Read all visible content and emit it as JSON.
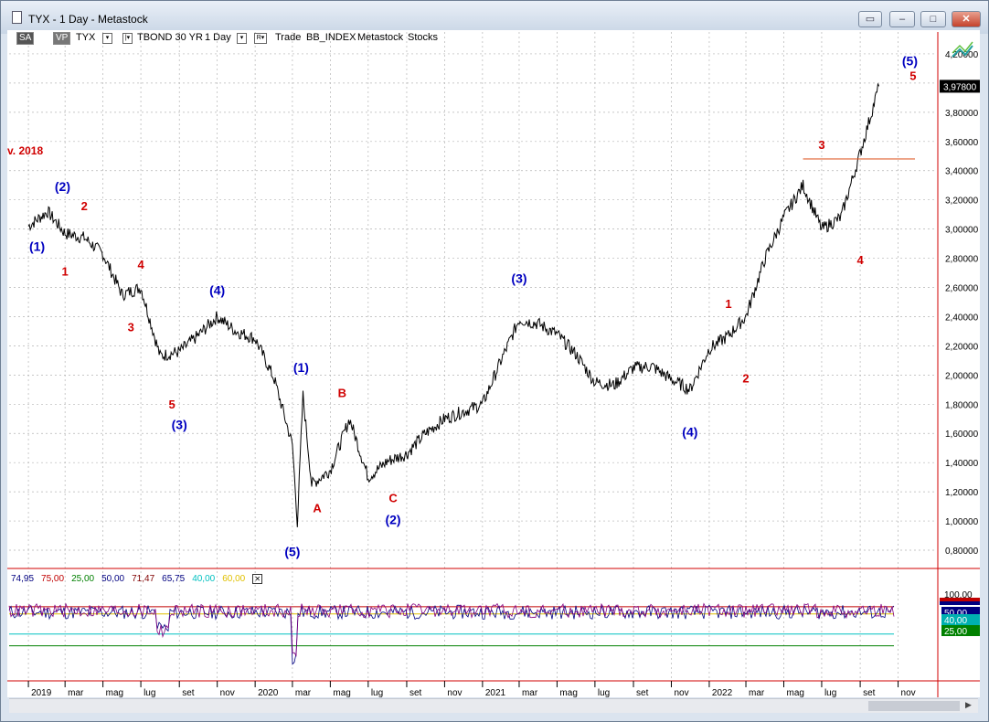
{
  "window": {
    "title": "TYX - 1 Day - Metastock"
  },
  "toolbar": {
    "sa": "SA",
    "vp": "VP",
    "symbol": "TYX",
    "security_name": "TBOND 30 YR",
    "period": "1 Day",
    "trade": "Trade",
    "index": "BB_INDEX",
    "provider": "Metastock",
    "category": "Stocks"
  },
  "icons": [
    "window-icon",
    "restore-icon",
    "minimize-icon",
    "maximize-icon",
    "close-icon",
    "dropdown-icon",
    "chart-toggle-icon",
    "close-box-icon"
  ],
  "price_axis": {
    "labels": [
      "4,20000",
      "4,00000",
      "3,80000",
      "3,60000",
      "3,40000",
      "3,20000",
      "3,00000",
      "2,80000",
      "2,60000",
      "2,40000",
      "2,20000",
      "2,00000",
      "1,80000",
      "1,60000",
      "1,40000",
      "1,20000",
      "1,00000",
      "0,80000"
    ],
    "values": [
      4.2,
      4.0,
      3.8,
      3.6,
      3.4,
      3.2,
      3.0,
      2.8,
      2.6,
      2.4,
      2.2,
      2.0,
      1.8,
      1.6,
      1.4,
      1.2,
      1.0,
      0.8
    ],
    "current_price_label": "3,97800",
    "current_price": 3.978
  },
  "x_axis": {
    "labels": [
      "2019",
      "mar",
      "mag",
      "lug",
      "set",
      "nov",
      "2020",
      "mar",
      "mag",
      "lug",
      "set",
      "nov",
      "2021",
      "mar",
      "mag",
      "lug",
      "set",
      "nov",
      "2022",
      "mar",
      "mag",
      "lug",
      "set",
      "nov"
    ]
  },
  "annotation_text": "v. 2018",
  "indicator": {
    "values_row": [
      "74,95",
      "75,00",
      "25,00",
      "50,00",
      "71,47",
      "65,75",
      "40,00",
      "60,00"
    ],
    "values_colors": [
      "#000080",
      "#c00000",
      "#008000",
      "#000080",
      "#800000",
      "#000080",
      "#00c0c0",
      "#e0c000"
    ],
    "axis_labels": [
      "100,00",
      "50,00",
      "40,00",
      "25,00"
    ],
    "axis_values": [
      100,
      50,
      40,
      25
    ],
    "axis_colors": [
      "#c00000",
      "#000080",
      "#00b0b0",
      "#008000"
    ],
    "series": [
      {
        "color": "#000080",
        "role": "line A"
      },
      {
        "color": "#800080",
        "role": "line B"
      }
    ],
    "ref_lines": [
      {
        "value": 75,
        "color": "#c00000"
      },
      {
        "value": 65.75,
        "color": "#e0c000"
      },
      {
        "value": 40,
        "color": "#00c0c0"
      },
      {
        "value": 25,
        "color": "#008000"
      }
    ]
  },
  "chart_data": {
    "type": "line",
    "title": "",
    "xlabel": "",
    "ylabel": "",
    "ylim": [
      0.7,
      4.35
    ],
    "x": [
      "2019-01-01",
      "2019-02-01",
      "2019-03-01",
      "2019-04-01",
      "2019-05-01",
      "2019-06-01",
      "2019-07-01",
      "2019-08-01",
      "2019-09-01",
      "2019-10-01",
      "2019-11-01",
      "2019-12-01",
      "2020-01-01",
      "2020-02-01",
      "2020-03-01",
      "2020-03-09",
      "2020-03-18",
      "2020-04-01",
      "2020-05-01",
      "2020-06-01",
      "2020-07-01",
      "2020-08-01",
      "2020-09-01",
      "2020-10-01",
      "2020-11-01",
      "2020-12-01",
      "2021-01-01",
      "2021-02-01",
      "2021-03-01",
      "2021-04-01",
      "2021-05-01",
      "2021-06-01",
      "2021-07-01",
      "2021-08-01",
      "2021-09-01",
      "2021-10-01",
      "2021-11-01",
      "2021-12-01",
      "2022-01-01",
      "2022-02-01",
      "2022-03-01",
      "2022-04-01",
      "2022-05-01",
      "2022-06-01",
      "2022-07-01",
      "2022-08-01",
      "2022-09-01",
      "2022-10-01"
    ],
    "series": [
      {
        "color": "#000000",
        "values": [
          3.02,
          3.12,
          2.97,
          2.94,
          2.83,
          2.55,
          2.6,
          2.13,
          2.16,
          2.27,
          2.4,
          2.3,
          2.25,
          1.97,
          1.52,
          0.99,
          1.86,
          1.25,
          1.35,
          1.7,
          1.3,
          1.41,
          1.46,
          1.6,
          1.7,
          1.75,
          1.8,
          2.11,
          2.38,
          2.35,
          2.28,
          2.14,
          1.95,
          1.93,
          2.05,
          2.06,
          1.97,
          1.9,
          2.18,
          2.27,
          2.4,
          2.8,
          3.08,
          3.3,
          3.0,
          3.08,
          3.52,
          3.978
        ]
      }
    ],
    "wave_labels": [
      {
        "text": "(1)",
        "x": "2019-01-15",
        "y": 2.85,
        "degree": "primary"
      },
      {
        "text": "1",
        "x": "2019-03-01",
        "y": 2.68,
        "degree": "minor"
      },
      {
        "text": "(2)",
        "x": "2019-02-25",
        "y": 3.26,
        "degree": "primary"
      },
      {
        "text": "2",
        "x": "2019-04-01",
        "y": 3.13,
        "degree": "minor"
      },
      {
        "text": "3",
        "x": "2019-06-15",
        "y": 2.3,
        "degree": "minor"
      },
      {
        "text": "4",
        "x": "2019-07-01",
        "y": 2.73,
        "degree": "minor"
      },
      {
        "text": "5",
        "x": "2019-08-20",
        "y": 1.77,
        "degree": "minor"
      },
      {
        "text": "(3)",
        "x": "2019-09-01",
        "y": 1.63,
        "degree": "primary"
      },
      {
        "text": "(4)",
        "x": "2019-11-01",
        "y": 2.55,
        "degree": "primary"
      },
      {
        "text": "(1)",
        "x": "2020-03-15",
        "y": 2.02,
        "degree": "primary"
      },
      {
        "text": "(5)",
        "x": "2020-03-01",
        "y": 0.76,
        "degree": "primary"
      },
      {
        "text": "A",
        "x": "2020-04-10",
        "y": 1.06,
        "degree": "minor"
      },
      {
        "text": "B",
        "x": "2020-05-20",
        "y": 1.85,
        "degree": "minor"
      },
      {
        "text": "C",
        "x": "2020-08-10",
        "y": 1.13,
        "degree": "minor"
      },
      {
        "text": "(2)",
        "x": "2020-08-10",
        "y": 0.98,
        "degree": "primary"
      },
      {
        "text": "(3)",
        "x": "2021-03-01",
        "y": 2.63,
        "degree": "primary"
      },
      {
        "text": "(4)",
        "x": "2021-12-01",
        "y": 1.58,
        "degree": "primary"
      },
      {
        "text": "1",
        "x": "2022-02-01",
        "y": 2.46,
        "degree": "minor"
      },
      {
        "text": "2",
        "x": "2022-03-01",
        "y": 1.95,
        "degree": "minor"
      },
      {
        "text": "3",
        "x": "2022-07-01",
        "y": 3.55,
        "degree": "minor"
      },
      {
        "text": "4",
        "x": "2022-09-01",
        "y": 2.76,
        "degree": "minor"
      },
      {
        "text": "(5)",
        "x": "2022-11-20",
        "y": 4.12,
        "degree": "primary"
      },
      {
        "text": "5",
        "x": "2022-11-25",
        "y": 4.02,
        "degree": "minor"
      }
    ],
    "horizontal_line": {
      "y": 3.48,
      "from": "2022-06-01",
      "color": "#e06030"
    }
  }
}
